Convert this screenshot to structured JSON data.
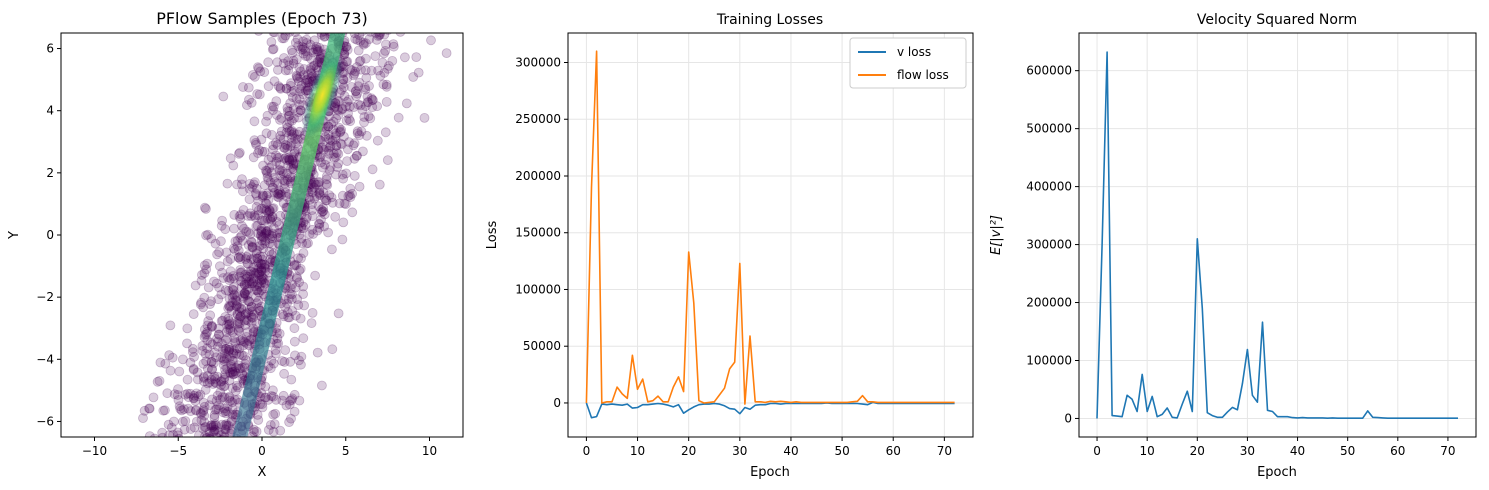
{
  "colors": {
    "v_loss": "#1f77b4",
    "flow_loss": "#ff7f0e",
    "scatter_base": "#440154",
    "grid": "#e6e6e6"
  },
  "chart_data": [
    {
      "type": "scatter",
      "title": "PFlow Samples (Epoch 73)",
      "xlabel": "X",
      "ylabel": "Y",
      "xlim": [
        -12,
        12
      ],
      "ylim": [
        -6.5,
        6.5
      ],
      "xticks": [
        -10,
        -5,
        0,
        5,
        10
      ],
      "yticks": [
        -6,
        -4,
        -2,
        0,
        2,
        4,
        6
      ],
      "grid": false,
      "colormap": "viridis (density)"
    },
    {
      "type": "line",
      "title": "Training Losses",
      "xlabel": "Epoch",
      "ylabel": "Loss",
      "xlim": [
        -3.6,
        75.6
      ],
      "ylim": [
        -30000,
        326000
      ],
      "xticks": [
        0,
        10,
        20,
        30,
        40,
        50,
        60,
        70
      ],
      "yticks": [
        0,
        50000,
        100000,
        150000,
        200000,
        250000,
        300000
      ],
      "grid": true,
      "legend": "top-right",
      "x": [
        0,
        1,
        2,
        3,
        4,
        5,
        6,
        7,
        8,
        9,
        10,
        11,
        12,
        13,
        14,
        15,
        16,
        17,
        18,
        19,
        20,
        21,
        22,
        23,
        24,
        25,
        26,
        27,
        28,
        29,
        30,
        31,
        32,
        33,
        34,
        35,
        36,
        37,
        38,
        39,
        40,
        41,
        42,
        43,
        44,
        45,
        46,
        47,
        48,
        49,
        50,
        51,
        52,
        53,
        54,
        55,
        56,
        57,
        58,
        59,
        60,
        61,
        62,
        63,
        64,
        65,
        66,
        67,
        68,
        69,
        70,
        71,
        72
      ],
      "series": [
        {
          "name": "v loss",
          "values": [
            0,
            -13000,
            -12000,
            -1000,
            -1500,
            -1000,
            -1500,
            -2000,
            -1000,
            -4500,
            -4000,
            -1500,
            -1500,
            -1000,
            -500,
            -1000,
            -2000,
            -3500,
            -1500,
            -9000,
            -6000,
            -3500,
            -1500,
            -1000,
            -1000,
            -500,
            -1000,
            -2500,
            -5000,
            -5500,
            -9500,
            -4000,
            -5500,
            -2000,
            -1500,
            -1500,
            -500,
            -500,
            -1000,
            -500,
            -500,
            -500,
            -500,
            -500,
            -500,
            -500,
            -500,
            0,
            -500,
            -500,
            -500,
            -500,
            -500,
            -500,
            -1000,
            -1500,
            500,
            -500,
            -500,
            -500,
            -500,
            -500,
            -500,
            -500,
            -500,
            -500,
            -500,
            -500,
            -500,
            -500,
            -500,
            -500,
            -500
          ]
        },
        {
          "name": "flow loss",
          "values": [
            0,
            190000,
            310000,
            0,
            1000,
            1000,
            14000,
            8000,
            4000,
            42000,
            12000,
            21000,
            1000,
            2000,
            6000,
            1000,
            1000,
            14000,
            23000,
            10000,
            133000,
            88000,
            2000,
            0,
            500,
            1000,
            7000,
            13000,
            30000,
            36000,
            123000,
            -1000,
            59000,
            1000,
            1000,
            500,
            1500,
            1000,
            1500,
            1000,
            500,
            1000,
            500,
            500,
            500,
            500,
            500,
            500,
            500,
            500,
            500,
            500,
            1000,
            1500,
            6500,
            1000,
            1000,
            500,
            500,
            500,
            500,
            500,
            500,
            500,
            500,
            500,
            500,
            500,
            500,
            500,
            500,
            500,
            500
          ]
        }
      ]
    },
    {
      "type": "line",
      "title": "Velocity Squared Norm",
      "xlabel": "Epoch",
      "ylabel": "E[|v|²]",
      "xlim": [
        -3.6,
        75.6
      ],
      "ylim": [
        -32000,
        665000
      ],
      "xticks": [
        0,
        10,
        20,
        30,
        40,
        50,
        60,
        70
      ],
      "yticks": [
        0,
        100000,
        200000,
        300000,
        400000,
        500000,
        600000
      ],
      "grid": true,
      "x": [
        0,
        1,
        2,
        3,
        4,
        5,
        6,
        7,
        8,
        9,
        10,
        11,
        12,
        13,
        14,
        15,
        16,
        17,
        18,
        19,
        20,
        21,
        22,
        23,
        24,
        25,
        26,
        27,
        28,
        29,
        30,
        31,
        32,
        33,
        34,
        35,
        36,
        37,
        38,
        39,
        40,
        41,
        42,
        43,
        44,
        45,
        46,
        47,
        48,
        49,
        50,
        51,
        52,
        53,
        54,
        55,
        56,
        57,
        58,
        59,
        60,
        61,
        62,
        63,
        64,
        65,
        66,
        67,
        68,
        69,
        70,
        71,
        72
      ],
      "series": [
        {
          "values": [
            0,
            300000,
            632000,
            5000,
            4000,
            3000,
            40000,
            33000,
            12000,
            76000,
            12000,
            38000,
            3000,
            7000,
            18000,
            2000,
            1000,
            25000,
            47000,
            12000,
            310000,
            190000,
            10000,
            5000,
            2000,
            2000,
            11000,
            19000,
            15000,
            60000,
            119000,
            40000,
            28000,
            166000,
            14000,
            12000,
            3000,
            3000,
            3000,
            1500,
            1000,
            1500,
            1000,
            1000,
            1000,
            1000,
            500,
            1000,
            500,
            500,
            500,
            500,
            500,
            500,
            13000,
            2000,
            1500,
            1000,
            500,
            500,
            500,
            500,
            500,
            500,
            500,
            500,
            500,
            500,
            500,
            500,
            500,
            500,
            500
          ]
        }
      ]
    }
  ]
}
